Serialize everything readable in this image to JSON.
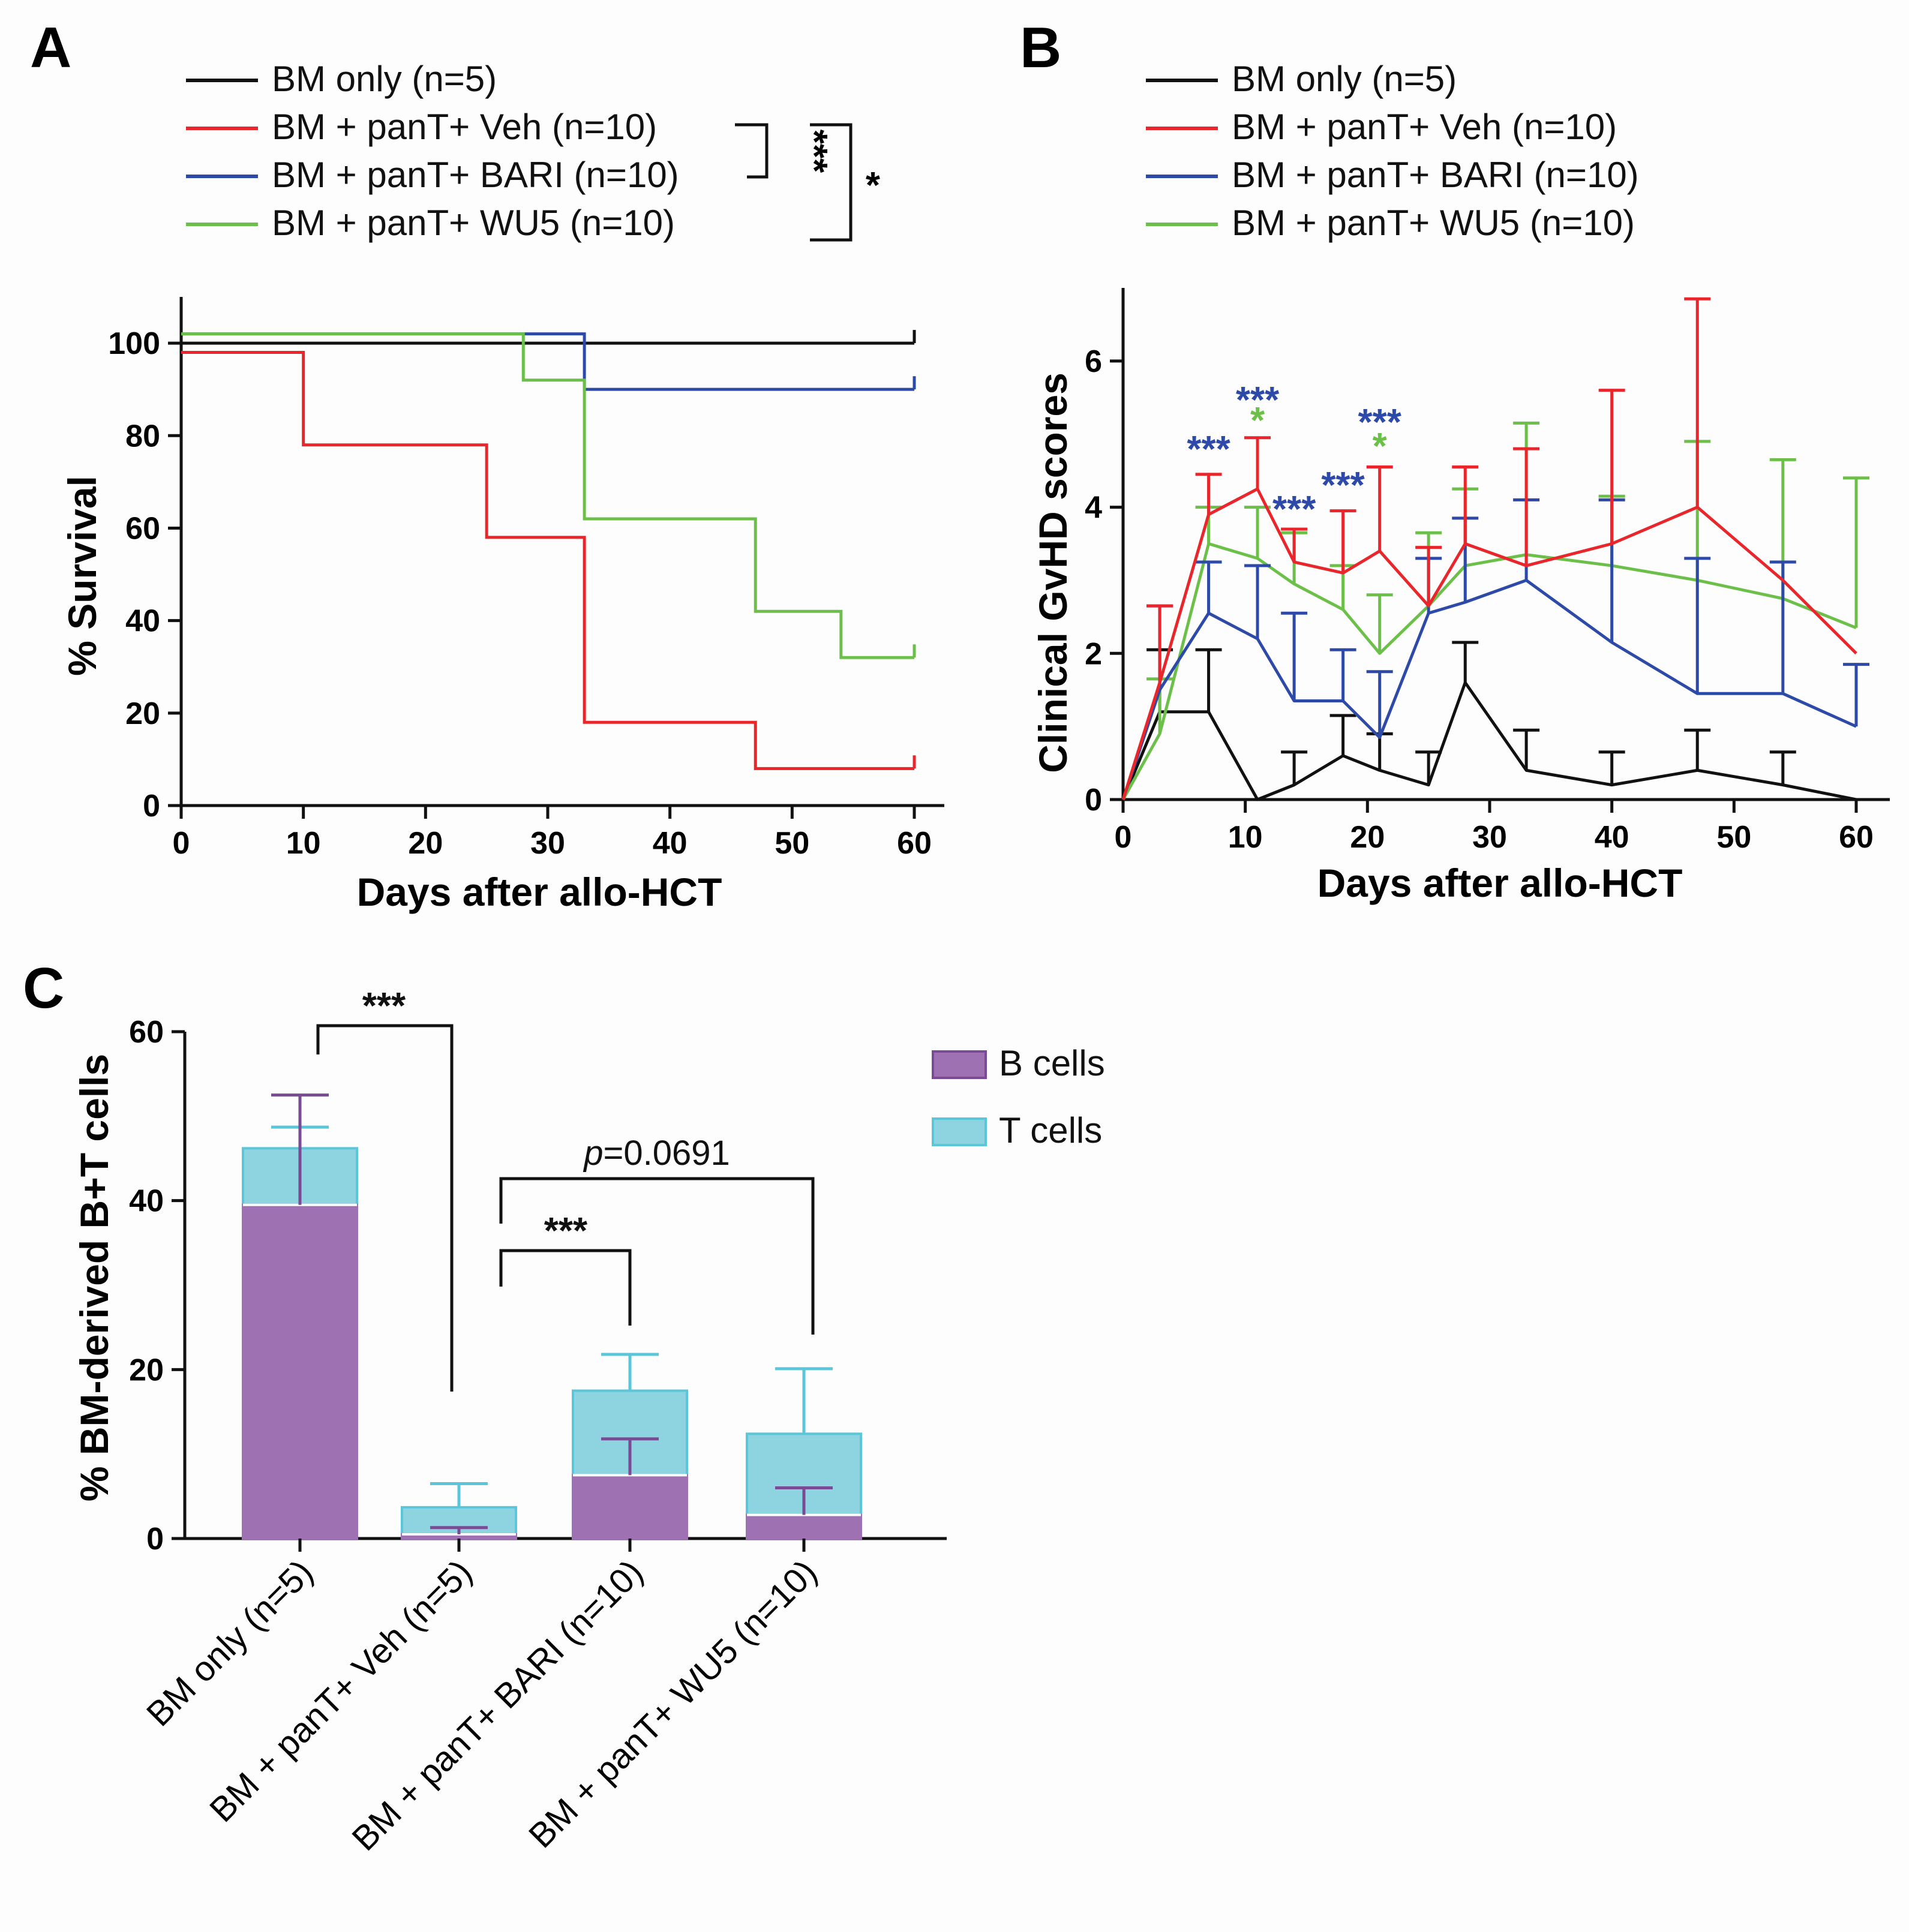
{
  "colors": {
    "black": "#111111",
    "red": "#e8262b",
    "blue": "#2e4aa8",
    "green": "#6cc04a",
    "purple": "#9e72b2",
    "cyan": "#8dd3e0",
    "cyan_edge": "#5bc6d9"
  },
  "chart_data": [
    {
      "type": "line",
      "panel": "A",
      "plot": "kaplan-meier survival",
      "xlabel": "Days after allo-HCT",
      "ylabel": "% Survival",
      "xlim": [
        0,
        60
      ],
      "ylim": [
        0,
        110
      ],
      "xticks": [
        "0",
        "10",
        "20",
        "30",
        "40",
        "50",
        "60"
      ],
      "yticks": [
        "0",
        "20",
        "40",
        "60",
        "80",
        "100"
      ],
      "series": [
        {
          "name": "BM only (n=5)",
          "color": "#111111",
          "x": [
            0,
            60
          ],
          "y": [
            100,
            100
          ]
        },
        {
          "name": "BM + panT+ Veh (n=10)",
          "color": "#e8262b",
          "x": [
            0,
            10,
            25,
            33,
            47,
            60
          ],
          "y": [
            98,
            78,
            58,
            18,
            8,
            8
          ]
        },
        {
          "name": "BM + panT+ BARI (n=10)",
          "color": "#2e4aa8",
          "x": [
            0,
            33,
            60
          ],
          "y": [
            102,
            90,
            90
          ]
        },
        {
          "name": "BM + panT+ WU5 (n=10)",
          "color": "#6cc04a",
          "x": [
            0,
            28,
            33,
            47,
            54,
            60
          ],
          "y": [
            102,
            92,
            62,
            42,
            32,
            32
          ]
        }
      ],
      "significance": [
        {
          "between": [
            "BM + panT+ Veh (n=10)",
            "BM + panT+ BARI (n=10)"
          ],
          "label": "***"
        },
        {
          "between": [
            "BM + panT+ Veh (n=10)",
            "BM + panT+ WU5 (n=10)"
          ],
          "label": "*"
        }
      ]
    },
    {
      "type": "line",
      "panel": "B",
      "xlabel": "Days after allo-HCT",
      "ylabel": "Clinical GvHD scores",
      "xlim": [
        0,
        62
      ],
      "ylim": [
        0,
        7
      ],
      "xticks": [
        "0",
        "10",
        "20",
        "30",
        "40",
        "50",
        "60"
      ],
      "yticks": [
        "0",
        "2",
        "4",
        "6"
      ],
      "x": [
        0,
        3,
        7,
        11,
        14,
        18,
        21,
        25,
        28,
        33,
        40,
        47,
        54,
        60
      ],
      "series": [
        {
          "name": "BM only (n=5)",
          "color": "#111111",
          "values": [
            0,
            1.2,
            1.2,
            0,
            0.2,
            0.6,
            0.4,
            0.2,
            1.6,
            0.4,
            0.2,
            0.4,
            0.2,
            0
          ],
          "err": [
            0,
            0.85,
            0.85,
            0,
            0.45,
            0.55,
            0.5,
            0.45,
            0.55,
            0.55,
            0.45,
            0.55,
            0.45,
            0
          ]
        },
        {
          "name": "BM + panT+ Veh (n=10)",
          "color": "#e8262b",
          "values": [
            0,
            1.6,
            3.9,
            4.25,
            3.25,
            3.1,
            3.4,
            2.65,
            3.5,
            3.2,
            3.5,
            4.0,
            3.0,
            2.0
          ],
          "err": [
            0,
            1.05,
            0.55,
            0.7,
            0.45,
            0.85,
            1.15,
            0.8,
            1.05,
            1.6,
            2.1,
            2.85,
            0,
            0
          ]
        },
        {
          "name": "BM + panT+ BARI (n=10)",
          "color": "#2e4aa8",
          "values": [
            0,
            1.5,
            2.55,
            2.2,
            1.35,
            1.35,
            0.85,
            2.55,
            2.7,
            3.0,
            2.15,
            1.45,
            1.45,
            1.0
          ],
          "err": [
            0,
            1.15,
            0.7,
            1.0,
            1.2,
            0.7,
            0.9,
            0.75,
            1.15,
            1.1,
            1.95,
            1.85,
            1.8,
            0.85
          ]
        },
        {
          "name": "BM + panT+ WU5 (n=10)",
          "color": "#6cc04a",
          "values": [
            0,
            0.9,
            3.5,
            3.3,
            2.95,
            2.6,
            2.0,
            2.65,
            3.2,
            3.35,
            3.2,
            3.0,
            2.75,
            2.35
          ],
          "err": [
            0,
            0.75,
            0.5,
            0.7,
            0.7,
            0.6,
            0.8,
            1.0,
            1.05,
            1.8,
            0.95,
            1.9,
            1.9,
            2.05
          ]
        }
      ],
      "annotations": [
        {
          "x": 7,
          "label": "***",
          "color": "#2e4aa8"
        },
        {
          "x": 11,
          "label": "***",
          "color": "#2e4aa8"
        },
        {
          "x": 11,
          "label": "*",
          "color": "#6cc04a"
        },
        {
          "x": 14,
          "label": "***",
          "color": "#2e4aa8"
        },
        {
          "x": 18,
          "label": "***",
          "color": "#2e4aa8"
        },
        {
          "x": 21,
          "label": "***",
          "color": "#2e4aa8"
        },
        {
          "x": 21,
          "label": "*",
          "color": "#6cc04a"
        }
      ]
    },
    {
      "type": "bar",
      "stacked": true,
      "panel": "C",
      "ylabel": "% BM-derived B+T cells",
      "ylim": [
        0,
        60
      ],
      "yticks": [
        "0",
        "20",
        "40",
        "60"
      ],
      "categories": [
        "BM only (n=5)",
        "BM + panT+ Veh (n=5)",
        "BM + panT+ BARI (n=10)",
        "BM + panT+ WU5 (n=10)"
      ],
      "series": [
        {
          "name": "B cells",
          "color": "#9e72b2",
          "values": [
            39.5,
            0.5,
            7.5,
            2.8
          ],
          "err": [
            13.0,
            0.8,
            4.3,
            3.2
          ]
        },
        {
          "name": "T cells",
          "color": "#8dd3e0",
          "values": [
            6.7,
            3.2,
            10.0,
            9.6
          ],
          "err": [
            2.5,
            2.8,
            4.3,
            7.7
          ]
        }
      ],
      "comparisons": [
        {
          "from": 0,
          "to": 1,
          "label": "***"
        },
        {
          "from": 1,
          "to": 2,
          "label": "***"
        },
        {
          "from": 1,
          "to": 3,
          "label_italic": "p",
          "label_rest": "=0.0691"
        }
      ]
    }
  ]
}
